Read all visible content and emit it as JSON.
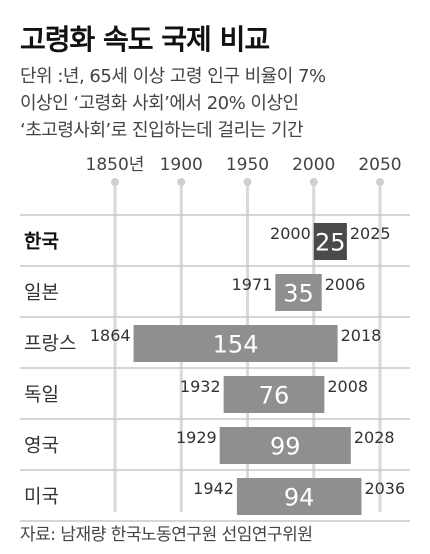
{
  "title": "고령화 속도 국제 비교",
  "subtitle": [
    "단위 :년, 65세 이상 고령 인구 비율이 7%",
    "이상인 ‘고령화 사회’에서 20% 이상인",
    "‘초고령사회’로 진입하는데 걸리는 기간"
  ],
  "source": "자료: 남재량 한국노동연구원 선임연구위원",
  "chart_data": {
    "type": "bar",
    "orientation": "horizontal-range",
    "x_axis": {
      "ticks": [
        1850,
        1900,
        1950,
        2000,
        2050
      ],
      "tick_labels": [
        "1850년",
        "1900",
        "1950",
        "2000",
        "2050"
      ],
      "range": [
        1850,
        2050
      ]
    },
    "categories": [
      "한국",
      "일본",
      "프랑스",
      "독일",
      "영국",
      "미국"
    ],
    "start": [
      2000,
      1971,
      1864,
      1932,
      1929,
      1942
    ],
    "end": [
      2025,
      2006,
      2018,
      2008,
      2028,
      2036
    ],
    "values": [
      25,
      35,
      154,
      76,
      99,
      94
    ],
    "start_labels": [
      "2000",
      "1971",
      "1864",
      "1932",
      "1929",
      "1942"
    ],
    "end_labels": [
      "2025",
      "2006",
      "2018",
      "2008",
      "2028",
      "2036"
    ],
    "value_labels": [
      "25",
      "35",
      "154",
      "76",
      "99",
      "94"
    ],
    "highlight": "한국",
    "colors": {
      "highlight": "#4a4a4a",
      "bar": "#8f8f8f",
      "gridline": "#d9d9d9",
      "rowline": "#c8c8c8"
    }
  }
}
